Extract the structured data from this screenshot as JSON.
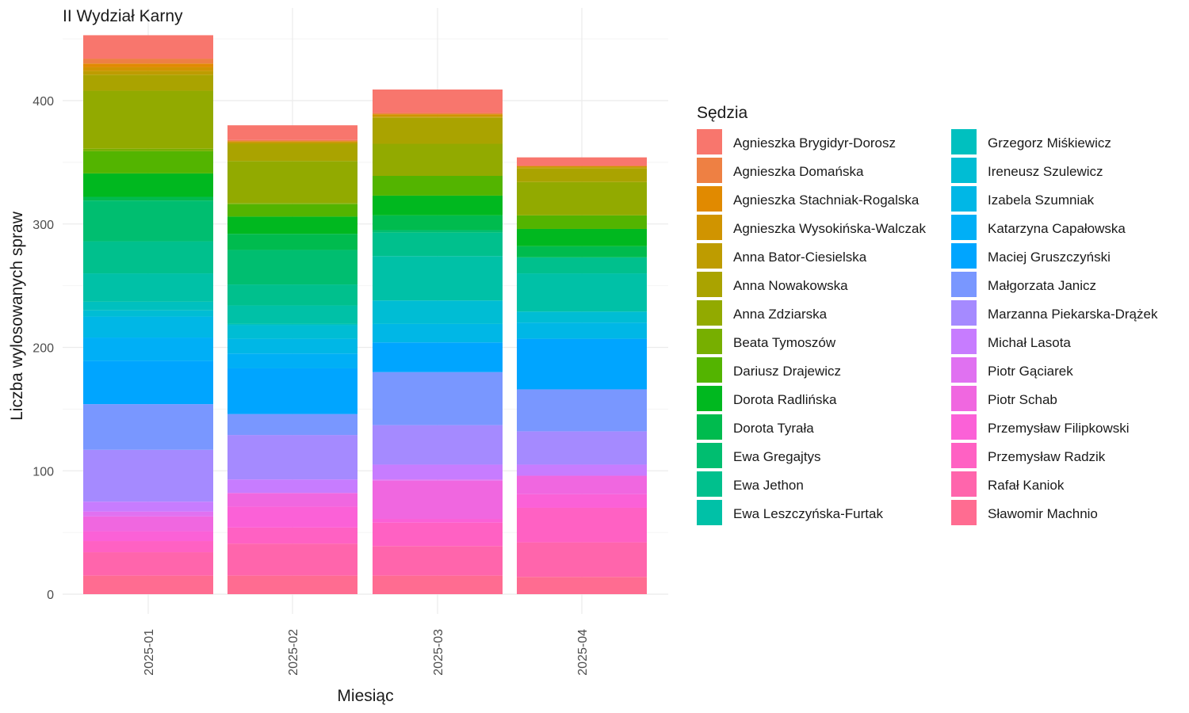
{
  "chart_data": {
    "type": "bar",
    "stacked": true,
    "title": "II Wydział Karny",
    "xlabel": "Miesiąc",
    "ylabel": "Liczba wylosowanych spraw",
    "categories": [
      "2025-01",
      "2025-02",
      "2025-03",
      "2025-04"
    ],
    "ylim": [
      0,
      475
    ],
    "yticks": [
      0,
      100,
      200,
      300,
      400
    ],
    "grid": true,
    "legend_title": "Sędzia",
    "legend_position": "right",
    "series": [
      {
        "name": "Agnieszka Brygidyr-Dorosz",
        "color": "#F8766D",
        "values": [
          19,
          12,
          19,
          7
        ]
      },
      {
        "name": "Agnieszka Domańska",
        "color": "#EE8043",
        "values": [
          4,
          1,
          1,
          0
        ]
      },
      {
        "name": "Agnieszka Stachniak-Rogalska",
        "color": "#E18A00",
        "values": [
          3,
          0,
          0,
          0
        ]
      },
      {
        "name": "Agnieszka Wysokińska-Walczak",
        "color": "#D09400",
        "values": [
          3,
          1,
          2,
          1
        ]
      },
      {
        "name": "Anna Bator-Ciesielska",
        "color": "#BE9C00",
        "values": [
          3,
          1,
          1,
          1
        ]
      },
      {
        "name": "Anna Nowakowska",
        "color": "#AAA300",
        "values": [
          13,
          14,
          21,
          11
        ]
      },
      {
        "name": "Anna Zdziarska",
        "color": "#92AA00",
        "values": [
          47,
          34,
          26,
          27
        ]
      },
      {
        "name": "Beata Tymoszów",
        "color": "#77AF00",
        "values": [
          2,
          1,
          0,
          0
        ]
      },
      {
        "name": "Dariusz Drajewicz",
        "color": "#53B400",
        "values": [
          18,
          10,
          16,
          11
        ]
      },
      {
        "name": "Dorota Radlińska",
        "color": "#00B81F",
        "values": [
          19,
          14,
          16,
          14
        ]
      },
      {
        "name": "Dorota Tyrała",
        "color": "#00BB4E",
        "values": [
          3,
          13,
          12,
          9
        ]
      },
      {
        "name": "Ewa Gregajtys",
        "color": "#00BE70",
        "values": [
          33,
          28,
          2,
          0
        ]
      },
      {
        "name": "Ewa Jethon",
        "color": "#00C08D",
        "values": [
          26,
          17,
          19,
          13
        ]
      },
      {
        "name": "Ewa Leszczyńska-Furtak",
        "color": "#00C1A7",
        "values": [
          23,
          15,
          36,
          31
        ]
      },
      {
        "name": "Grzegorz Miśkiewicz",
        "color": "#00C0BF",
        "values": [
          7,
          1,
          0,
          0
        ]
      },
      {
        "name": "Ireneusz Szulewicz",
        "color": "#00BDD4",
        "values": [
          5,
          11,
          19,
          9
        ]
      },
      {
        "name": "Izabela Szumniak",
        "color": "#00B7E6",
        "values": [
          17,
          12,
          15,
          13
        ]
      },
      {
        "name": "Katarzyna Capałowska",
        "color": "#00AFF6",
        "values": [
          19,
          12,
          0,
          0
        ]
      },
      {
        "name": "Maciej Gruszczyński",
        "color": "#00A5FF",
        "values": [
          35,
          37,
          24,
          41
        ]
      },
      {
        "name": "Małgorzata Janicz",
        "color": "#7997FF",
        "values": [
          37,
          17,
          43,
          34
        ]
      },
      {
        "name": "Marzanna Piekarska-Drążek",
        "color": "#A58AFF",
        "values": [
          42,
          36,
          32,
          27
        ]
      },
      {
        "name": "Michał Lasota",
        "color": "#C77CFF",
        "values": [
          8,
          11,
          12,
          9
        ]
      },
      {
        "name": "Piotr Gąciarek",
        "color": "#E071F1",
        "values": [
          4,
          0,
          1,
          0
        ]
      },
      {
        "name": "Piotr Schab",
        "color": "#F067E0",
        "values": [
          12,
          11,
          31,
          15
        ]
      },
      {
        "name": "Przemysław Filipkowski",
        "color": "#FB61D7",
        "values": [
          8,
          17,
          3,
          11
        ]
      },
      {
        "name": "Przemysław Radzik",
        "color": "#FF61C3",
        "values": [
          9,
          13,
          19,
          28
        ]
      },
      {
        "name": "Rafał Kaniok",
        "color": "#FF65AC",
        "values": [
          19,
          26,
          24,
          28
        ]
      },
      {
        "name": "Sławomir Machnio",
        "color": "#FF6C91",
        "values": [
          15,
          15,
          15,
          14
        ]
      }
    ]
  }
}
